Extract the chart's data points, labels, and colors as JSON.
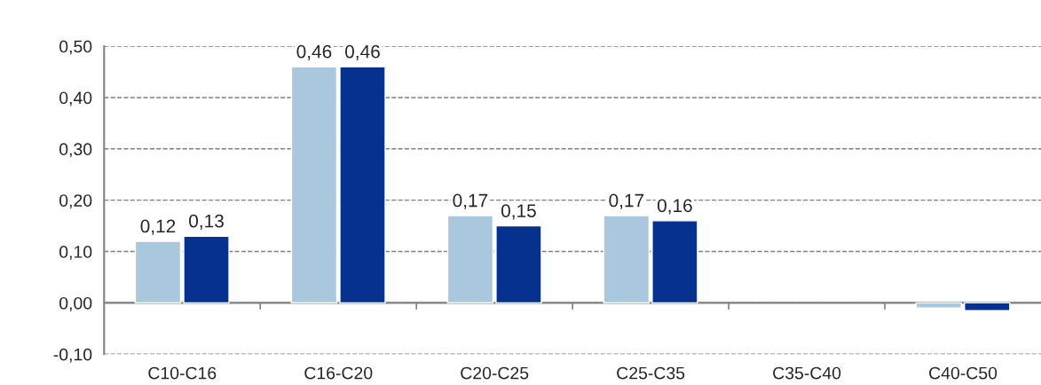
{
  "chart_data": {
    "type": "bar",
    "categories": [
      "C10-C16",
      "C16-C20",
      "C20-C25",
      "C25-C35",
      "C35-C40",
      "C40-C50"
    ],
    "series": [
      {
        "color": "#a9c8de",
        "values": [
          0.12,
          0.46,
          0.17,
          0.17,
          null,
          -0.01
        ],
        "value_labels": [
          "0,12",
          "0,46",
          "0,17",
          "0,17",
          null,
          null
        ]
      },
      {
        "color": "#06318e",
        "values": [
          0.13,
          0.46,
          0.15,
          0.16,
          null,
          -0.015
        ],
        "value_labels": [
          "0,13",
          "0,46",
          "0,15",
          "0,16",
          null,
          null
        ]
      }
    ],
    "ylim": [
      -0.1,
      0.5
    ],
    "yticks": [
      {
        "value": -0.1,
        "label": "-0,10"
      },
      {
        "value": 0,
        "label": "0,00"
      },
      {
        "value": 0.1,
        "label": "0,10"
      },
      {
        "value": 0.2,
        "label": "0,20"
      },
      {
        "value": 0.3,
        "label": "0,30"
      },
      {
        "value": 0.4,
        "label": "0,40"
      },
      {
        "value": 0.5,
        "label": "0,50"
      }
    ],
    "grid": "y",
    "legend": false
  }
}
